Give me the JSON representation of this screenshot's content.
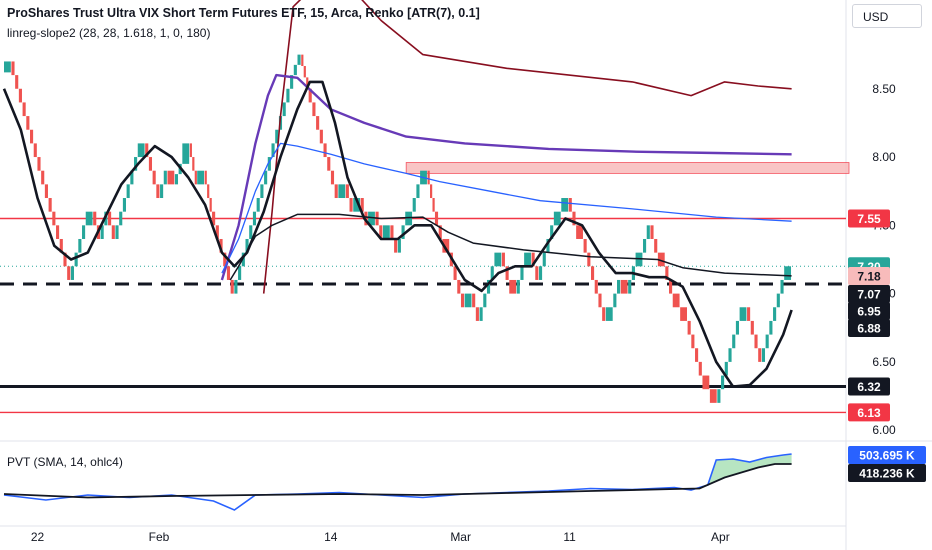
{
  "header": {
    "title": "ProShares Trust Ultra VIX Short Term Futures ETF, 15, Arca, Renko [ATR(7), 0.1]",
    "indicator": "linreg-slope2 (28, 28, 1.618, 1, 0, 180)",
    "lower_indicator": "PVT (SMA, 14, ohlc4)",
    "currency": "USD"
  },
  "colors": {
    "up": "#26a69a",
    "down": "#ef5350",
    "red_line": "#f23645",
    "dark_red": "#880e1f",
    "purple": "#673ab7",
    "blue": "#2962ff",
    "black": "#131722",
    "zone": "#f8bbbb",
    "pvt_line": "#2962ff",
    "pvt_fill_green": "#b7e5c2",
    "pvt_fill_red": "#f7c5c5"
  },
  "chart_data": {
    "type": "line",
    "price_axis": {
      "ticks": [
        "8.50",
        "8.00",
        "7.50",
        "7.00",
        "6.50",
        "6.00"
      ],
      "range": [
        5.95,
        9.15
      ]
    },
    "time_axis": {
      "labels": [
        "22",
        "Feb",
        "14",
        "Mar",
        "11",
        "Apr"
      ],
      "range": [
        0,
        190
      ],
      "label_positions": [
        8,
        37,
        78,
        109,
        135,
        171
      ]
    },
    "horizontal_levels": [
      {
        "name": "resistance-7.55",
        "value": 7.55,
        "style": "red",
        "label": "7.55"
      },
      {
        "name": "support-6.13",
        "value": 6.13,
        "style": "red",
        "label": "6.13"
      },
      {
        "name": "support-6.32",
        "value": 6.32,
        "style": "black-thick",
        "label": "6.32"
      },
      {
        "name": "level-7.07",
        "value": 7.07,
        "style": "black-dashed",
        "label": "7.07"
      }
    ],
    "zone": {
      "from": 7.88,
      "to": 7.96,
      "start_x": 96
    },
    "price_labels": [
      {
        "value": 7.2,
        "label": "7.20",
        "bg": "#26a69a",
        "fg": "#ffffff"
      },
      {
        "value": 7.18,
        "label": "7.18",
        "bg": "#f8bbbb",
        "fg": "#131722"
      },
      {
        "value": 6.95,
        "label": "6.95",
        "bg": "#131722",
        "fg": "#ffffff"
      },
      {
        "value": 6.88,
        "label": "6.88",
        "bg": "#131722",
        "fg": "#ffffff"
      }
    ],
    "renko_path": [
      8.62,
      8.7,
      8.5,
      8.3,
      8.1,
      7.9,
      7.7,
      7.5,
      7.3,
      7.1,
      7.3,
      7.5,
      7.6,
      7.4,
      7.6,
      7.4,
      7.6,
      7.8,
      8.0,
      8.1,
      7.9,
      7.7,
      7.9,
      7.8,
      7.95,
      8.1,
      7.8,
      7.9,
      7.6,
      7.4,
      7.2,
      7.0,
      7.2,
      7.4,
      7.6,
      7.8,
      8.0,
      8.2,
      8.4,
      8.6,
      8.75,
      8.5,
      8.3,
      8.1,
      7.9,
      7.7,
      7.8,
      7.6,
      7.7,
      7.5,
      7.6,
      7.4,
      7.5,
      7.3,
      7.5,
      7.6,
      7.8,
      7.9,
      7.6,
      7.4,
      7.3,
      7.1,
      6.9,
      7.0,
      6.8,
      7.0,
      7.2,
      7.3,
      7.1,
      7.0,
      7.2,
      7.3,
      7.1,
      7.3,
      7.5,
      7.6,
      7.7,
      7.5,
      7.4,
      7.2,
      7.0,
      6.8,
      6.9,
      7.1,
      7.0,
      7.2,
      7.3,
      7.5,
      7.3,
      7.2,
      7.0,
      6.9,
      6.8,
      6.6,
      6.4,
      6.3,
      6.2,
      6.4,
      6.6,
      6.8,
      6.9,
      6.7,
      6.5,
      6.7,
      6.9,
      7.1,
      7.2
    ],
    "series": [
      {
        "key": "upper2",
        "color": "#880e1f",
        "width": 1.6,
        "points": [
          [
            62,
            7.0
          ],
          [
            64,
            7.6
          ],
          [
            66,
            8.3
          ],
          [
            69,
            9.1
          ],
          [
            74,
            9.25
          ],
          [
            84,
            9.2
          ],
          [
            90,
            9.0
          ],
          [
            100,
            8.75
          ],
          [
            120,
            8.65
          ],
          [
            150,
            8.55
          ],
          [
            164,
            8.45
          ],
          [
            172,
            8.55
          ],
          [
            180,
            8.52
          ],
          [
            188,
            8.5
          ]
        ]
      },
      {
        "key": "upper1",
        "color": "#673ab7",
        "width": 2.4,
        "points": [
          [
            52,
            7.1
          ],
          [
            56,
            7.5
          ],
          [
            60,
            8.1
          ],
          [
            63,
            8.45
          ],
          [
            65,
            8.6
          ],
          [
            70,
            8.58
          ],
          [
            78,
            8.35
          ],
          [
            86,
            8.25
          ],
          [
            96,
            8.15
          ],
          [
            110,
            8.1
          ],
          [
            130,
            8.06
          ],
          [
            150,
            8.04
          ],
          [
            170,
            8.03
          ],
          [
            188,
            8.02
          ]
        ]
      },
      {
        "key": "mid",
        "color": "#2962ff",
        "width": 1.3,
        "points": [
          [
            52,
            7.15
          ],
          [
            56,
            7.4
          ],
          [
            60,
            7.75
          ],
          [
            63,
            7.95
          ],
          [
            66,
            8.1
          ],
          [
            70,
            8.08
          ],
          [
            78,
            8.02
          ],
          [
            86,
            7.95
          ],
          [
            96,
            7.88
          ],
          [
            104,
            7.82
          ],
          [
            116,
            7.75
          ],
          [
            128,
            7.68
          ],
          [
            150,
            7.62
          ],
          [
            170,
            7.56
          ],
          [
            188,
            7.53
          ]
        ]
      },
      {
        "key": "lower1",
        "color": "#131722",
        "width": 1.5,
        "points": [
          [
            54,
            7.1
          ],
          [
            56,
            7.2
          ],
          [
            60,
            7.42
          ],
          [
            64,
            7.5
          ],
          [
            70,
            7.58
          ],
          [
            80,
            7.58
          ],
          [
            90,
            7.55
          ],
          [
            100,
            7.56
          ],
          [
            106,
            7.45
          ],
          [
            112,
            7.37
          ],
          [
            124,
            7.32
          ],
          [
            140,
            7.27
          ],
          [
            156,
            7.25
          ],
          [
            162,
            7.19
          ],
          [
            172,
            7.15
          ],
          [
            188,
            7.13
          ]
        ]
      },
      {
        "key": "smooth",
        "color": "#131722",
        "width": 2.6,
        "points": [
          [
            0,
            8.5
          ],
          [
            4,
            8.2
          ],
          [
            8,
            7.7
          ],
          [
            12,
            7.35
          ],
          [
            16,
            7.25
          ],
          [
            20,
            7.3
          ],
          [
            24,
            7.55
          ],
          [
            28,
            7.8
          ],
          [
            32,
            7.95
          ],
          [
            36,
            8.08
          ],
          [
            40,
            8.0
          ],
          [
            44,
            7.85
          ],
          [
            48,
            7.65
          ],
          [
            52,
            7.3
          ],
          [
            55,
            7.2
          ],
          [
            58,
            7.3
          ],
          [
            62,
            7.6
          ],
          [
            66,
            8.0
          ],
          [
            70,
            8.35
          ],
          [
            73,
            8.55
          ],
          [
            76,
            8.55
          ],
          [
            79,
            8.25
          ],
          [
            82,
            7.85
          ],
          [
            86,
            7.55
          ],
          [
            90,
            7.4
          ],
          [
            94,
            7.4
          ],
          [
            98,
            7.5
          ],
          [
            102,
            7.5
          ],
          [
            106,
            7.3
          ],
          [
            110,
            7.1
          ],
          [
            114,
            7.02
          ],
          [
            118,
            7.15
          ],
          [
            122,
            7.2
          ],
          [
            126,
            7.2
          ],
          [
            130,
            7.38
          ],
          [
            134,
            7.55
          ],
          [
            138,
            7.5
          ],
          [
            142,
            7.3
          ],
          [
            146,
            7.15
          ],
          [
            150,
            7.15
          ],
          [
            154,
            7.12
          ],
          [
            158,
            7.12
          ],
          [
            162,
            7.05
          ],
          [
            166,
            6.8
          ],
          [
            170,
            6.5
          ],
          [
            174,
            6.32
          ],
          [
            178,
            6.33
          ],
          [
            182,
            6.45
          ],
          [
            186,
            6.7
          ],
          [
            188,
            6.88
          ]
        ]
      }
    ],
    "pvt": {
      "labels": [
        {
          "value": "503.695 K",
          "bg": "#2962ff",
          "fg": "#ffffff"
        },
        {
          "value": "418.236 K",
          "bg": "#131722",
          "fg": "#ffffff"
        }
      ],
      "range": [
        -0.6,
        1.0
      ],
      "line": [
        [
          0,
          0.0
        ],
        [
          10,
          -0.1
        ],
        [
          20,
          0.0
        ],
        [
          30,
          -0.05
        ],
        [
          40,
          0.0
        ],
        [
          50,
          -0.12
        ],
        [
          55,
          -0.3
        ],
        [
          60,
          0.0
        ],
        [
          70,
          0.02
        ],
        [
          80,
          0.05
        ],
        [
          90,
          0.0
        ],
        [
          100,
          -0.05
        ],
        [
          110,
          0.02
        ],
        [
          120,
          0.05
        ],
        [
          130,
          0.08
        ],
        [
          140,
          0.13
        ],
        [
          150,
          0.11
        ],
        [
          160,
          0.15
        ],
        [
          164,
          0.1
        ],
        [
          168,
          0.2
        ],
        [
          170,
          0.7
        ],
        [
          174,
          0.72
        ],
        [
          178,
          0.66
        ],
        [
          182,
          0.75
        ],
        [
          186,
          0.8
        ],
        [
          188,
          0.82
        ]
      ],
      "sma": [
        [
          0,
          0.02
        ],
        [
          20,
          -0.05
        ],
        [
          40,
          -0.02
        ],
        [
          60,
          0.0
        ],
        [
          80,
          0.02
        ],
        [
          100,
          0.0
        ],
        [
          120,
          0.04
        ],
        [
          140,
          0.08
        ],
        [
          160,
          0.12
        ],
        [
          166,
          0.13
        ],
        [
          172,
          0.35
        ],
        [
          180,
          0.55
        ],
        [
          184,
          0.62
        ],
        [
          188,
          0.62
        ]
      ]
    }
  }
}
